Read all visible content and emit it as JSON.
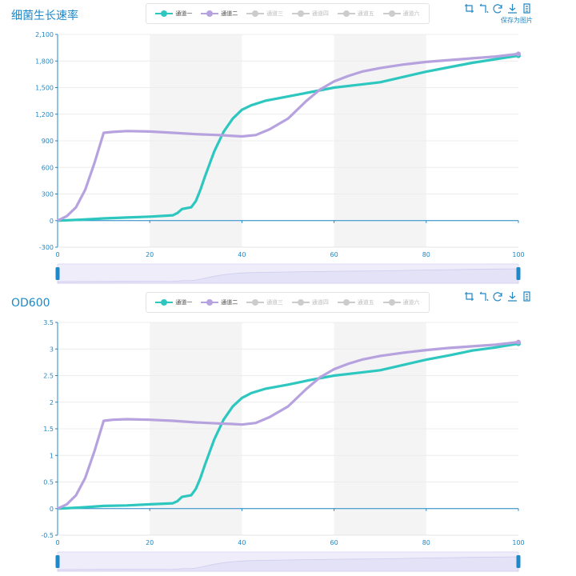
{
  "colors": {
    "series1": "#2ec7c0",
    "series2": "#b6a2de",
    "inactive": "#cccccc",
    "axis": "#1e88c8",
    "band": "#f4f4f4",
    "slider_fill": "#e4e2f7",
    "slider_handle": "#1e88c8"
  },
  "legend": [
    "通道一",
    "通道二",
    "通道三",
    "通道四",
    "通道五",
    "通道六"
  ],
  "toolbox": {
    "icons": [
      "zoom-icon",
      "zoom-reset-icon",
      "restore-icon",
      "download-icon",
      "data-view-icon"
    ],
    "save_tip": "保存为图片"
  },
  "chart_data": [
    {
      "type": "line",
      "title": "细菌生长速率",
      "xlabel": "",
      "ylabel": "",
      "xlim": [
        0,
        100
      ],
      "ylim": [
        -300,
        2100
      ],
      "x_ticks": [
        "0",
        "20",
        "40",
        "60",
        "80",
        "100"
      ],
      "y_ticks": [
        "-300",
        "0",
        "300",
        "600",
        "900",
        "1,200",
        "1,500",
        "1,800",
        "2,100"
      ],
      "grid": true,
      "legend_position": "top-center",
      "series": [
        {
          "name": "通道一",
          "active": true,
          "points": [
            [
              0,
              0
            ],
            [
              5,
              10
            ],
            [
              10,
              25
            ],
            [
              15,
              35
            ],
            [
              20,
              45
            ],
            [
              25,
              60
            ],
            [
              26,
              85
            ],
            [
              27,
              130
            ],
            [
              29,
              150
            ],
            [
              30,
              220
            ],
            [
              31,
              350
            ],
            [
              32,
              500
            ],
            [
              34,
              780
            ],
            [
              36,
              1000
            ],
            [
              38,
              1150
            ],
            [
              40,
              1250
            ],
            [
              42,
              1300
            ],
            [
              45,
              1350
            ],
            [
              50,
              1400
            ],
            [
              55,
              1450
            ],
            [
              60,
              1500
            ],
            [
              65,
              1530
            ],
            [
              70,
              1560
            ],
            [
              75,
              1620
            ],
            [
              80,
              1680
            ],
            [
              85,
              1730
            ],
            [
              90,
              1780
            ],
            [
              95,
              1820
            ],
            [
              100,
              1860
            ]
          ]
        },
        {
          "name": "通道二",
          "active": true,
          "points": [
            [
              0,
              0
            ],
            [
              2,
              50
            ],
            [
              4,
              150
            ],
            [
              6,
              350
            ],
            [
              8,
              650
            ],
            [
              10,
              990
            ],
            [
              12,
              1000
            ],
            [
              15,
              1010
            ],
            [
              20,
              1005
            ],
            [
              25,
              990
            ],
            [
              30,
              975
            ],
            [
              35,
              965
            ],
            [
              38,
              955
            ],
            [
              40,
              950
            ],
            [
              43,
              965
            ],
            [
              46,
              1030
            ],
            [
              50,
              1150
            ],
            [
              54,
              1350
            ],
            [
              57,
              1480
            ],
            [
              60,
              1570
            ],
            [
              63,
              1630
            ],
            [
              66,
              1680
            ],
            [
              70,
              1720
            ],
            [
              75,
              1760
            ],
            [
              80,
              1790
            ],
            [
              85,
              1810
            ],
            [
              90,
              1830
            ],
            [
              95,
              1850
            ],
            [
              100,
              1880
            ]
          ]
        },
        {
          "name": "通道三",
          "active": false,
          "points": []
        },
        {
          "name": "通道四",
          "active": false,
          "points": []
        },
        {
          "name": "通道五",
          "active": false,
          "points": []
        },
        {
          "name": "通道六",
          "active": false,
          "points": []
        }
      ]
    },
    {
      "type": "line",
      "title": "OD600",
      "xlabel": "",
      "ylabel": "",
      "xlim": [
        0,
        100
      ],
      "ylim": [
        -0.5,
        3.5
      ],
      "x_ticks": [
        "0",
        "20",
        "40",
        "60",
        "80",
        "100"
      ],
      "y_ticks": [
        "-0.5",
        "0",
        "0.5",
        "1",
        "1.5",
        "2",
        "2.5",
        "3",
        "3.5"
      ],
      "grid": true,
      "legend_position": "top-center",
      "series": [
        {
          "name": "通道一",
          "active": true,
          "points": [
            [
              0,
              0
            ],
            [
              5,
              0.02
            ],
            [
              10,
              0.05
            ],
            [
              15,
              0.06
            ],
            [
              20,
              0.08
            ],
            [
              25,
              0.1
            ],
            [
              26,
              0.14
            ],
            [
              27,
              0.22
            ],
            [
              29,
              0.25
            ],
            [
              30,
              0.37
            ],
            [
              31,
              0.58
            ],
            [
              32,
              0.83
            ],
            [
              34,
              1.3
            ],
            [
              36,
              1.67
            ],
            [
              38,
              1.92
            ],
            [
              40,
              2.08
            ],
            [
              42,
              2.17
            ],
            [
              45,
              2.25
            ],
            [
              50,
              2.33
            ],
            [
              55,
              2.42
            ],
            [
              60,
              2.5
            ],
            [
              65,
              2.55
            ],
            [
              70,
              2.6
            ],
            [
              75,
              2.7
            ],
            [
              80,
              2.8
            ],
            [
              85,
              2.88
            ],
            [
              90,
              2.97
            ],
            [
              95,
              3.03
            ],
            [
              100,
              3.1
            ]
          ]
        },
        {
          "name": "通道二",
          "active": true,
          "points": [
            [
              0,
              0
            ],
            [
              2,
              0.08
            ],
            [
              4,
              0.25
            ],
            [
              6,
              0.58
            ],
            [
              8,
              1.08
            ],
            [
              10,
              1.65
            ],
            [
              12,
              1.67
            ],
            [
              15,
              1.68
            ],
            [
              20,
              1.67
            ],
            [
              25,
              1.65
            ],
            [
              30,
              1.62
            ],
            [
              35,
              1.6
            ],
            [
              38,
              1.59
            ],
            [
              40,
              1.58
            ],
            [
              43,
              1.61
            ],
            [
              46,
              1.72
            ],
            [
              50,
              1.92
            ],
            [
              54,
              2.25
            ],
            [
              57,
              2.47
            ],
            [
              60,
              2.62
            ],
            [
              63,
              2.72
            ],
            [
              66,
              2.8
            ],
            [
              70,
              2.87
            ],
            [
              75,
              2.93
            ],
            [
              80,
              2.98
            ],
            [
              85,
              3.02
            ],
            [
              90,
              3.05
            ],
            [
              95,
              3.08
            ],
            [
              100,
              3.13
            ]
          ]
        },
        {
          "name": "通道三",
          "active": false,
          "points": []
        },
        {
          "name": "通道四",
          "active": false,
          "points": []
        },
        {
          "name": "通道五",
          "active": false,
          "points": []
        },
        {
          "name": "通道六",
          "active": false,
          "points": []
        }
      ]
    }
  ]
}
